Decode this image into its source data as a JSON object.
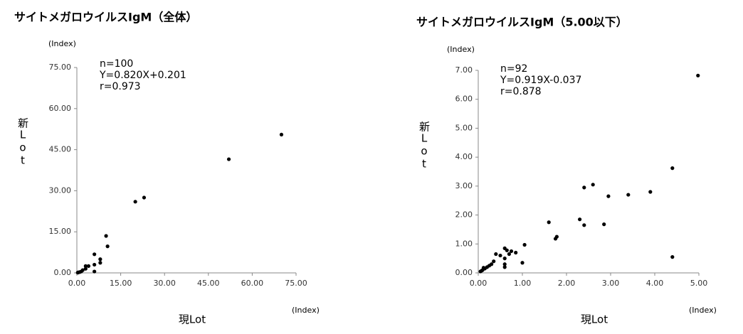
{
  "chart_data": [
    {
      "type": "scatter",
      "title": "サイトメガロウイルスIgM（全体）",
      "y_unit": "(Index)",
      "x_unit": "(Index)",
      "x_label": "現Lot",
      "y_label": "新Lot",
      "annotations": [
        "n=100",
        "Y=0.820X+0.201",
        "r=0.973"
      ],
      "color": "#000000",
      "x": [
        70,
        52,
        23,
        20,
        10,
        10.5,
        8,
        8,
        6,
        6,
        6,
        4,
        3,
        3,
        2,
        1.5,
        1,
        0.5,
        0.3
      ],
      "values": [
        50.5,
        41.5,
        27.5,
        26,
        13.5,
        9.7,
        5,
        3.7,
        6.8,
        3,
        0.5,
        2.5,
        2.5,
        1.5,
        1,
        0.5,
        0.3,
        0.2,
        0.1
      ],
      "xlim": [
        0,
        75
      ],
      "ylim": [
        0,
        75
      ],
      "xticks": [
        {
          "value": 0,
          "label": "0.00"
        },
        {
          "value": 15,
          "label": "15.00"
        },
        {
          "value": 30,
          "label": "30.00"
        },
        {
          "value": 45,
          "label": "45.00"
        },
        {
          "value": 60,
          "label": "60.00"
        },
        {
          "value": 75,
          "label": "75.00"
        }
      ],
      "yticks": [
        {
          "value": 0,
          "label": "0.00"
        },
        {
          "value": 15,
          "label": "15.00"
        },
        {
          "value": 30,
          "label": "30.00"
        },
        {
          "value": 45,
          "label": "45.00"
        },
        {
          "value": 60,
          "label": "60.00"
        },
        {
          "value": 75,
          "label": "75.00"
        }
      ]
    },
    {
      "type": "scatter",
      "title": "サイトメガロウイルスIgM（5.00以下）",
      "y_unit": "(Index)",
      "x_unit": "(Index)",
      "x_label": "現Lot",
      "y_label": "新Lot",
      "annotations": [
        "n=92",
        "Y=0.919X-0.037",
        "r=0.878"
      ],
      "color": "#000000",
      "x": [
        4.98,
        4.4,
        4.4,
        3.9,
        3.4,
        2.95,
        2.6,
        2.4,
        2.3,
        2.4,
        2.85,
        1.6,
        1.75,
        1.78,
        1.05,
        1.0,
        0.85,
        0.75,
        0.7,
        0.6,
        0.65,
        0.6,
        0.6,
        0.6,
        0.5,
        0.4,
        0.35,
        0.3,
        0.25,
        0.2,
        0.15,
        0.1,
        0.05,
        0.12,
        0.08
      ],
      "values": [
        6.82,
        3.62,
        0.55,
        2.8,
        2.7,
        2.65,
        3.05,
        2.95,
        1.85,
        1.65,
        1.68,
        1.75,
        1.18,
        1.25,
        0.97,
        0.35,
        0.7,
        0.75,
        0.65,
        0.85,
        0.78,
        0.5,
        0.3,
        0.2,
        0.6,
        0.65,
        0.4,
        0.3,
        0.25,
        0.2,
        0.15,
        0.1,
        0.05,
        0.18,
        0.08
      ],
      "xlim": [
        0,
        5
      ],
      "ylim": [
        0,
        7
      ],
      "xticks": [
        {
          "value": 0,
          "label": "0.00"
        },
        {
          "value": 1,
          "label": "1.00"
        },
        {
          "value": 2,
          "label": "2.00"
        },
        {
          "value": 3,
          "label": "3.00"
        },
        {
          "value": 4,
          "label": "4.00"
        },
        {
          "value": 5,
          "label": "5.00"
        }
      ],
      "yticks": [
        {
          "value": 0,
          "label": "0.00"
        },
        {
          "value": 1,
          "label": "1.00"
        },
        {
          "value": 2,
          "label": "2.00"
        },
        {
          "value": 3,
          "label": "3.00"
        },
        {
          "value": 4,
          "label": "4.00"
        },
        {
          "value": 5,
          "label": "5.00"
        },
        {
          "value": 6,
          "label": "6.00"
        },
        {
          "value": 7,
          "label": "7.00"
        }
      ]
    }
  ]
}
